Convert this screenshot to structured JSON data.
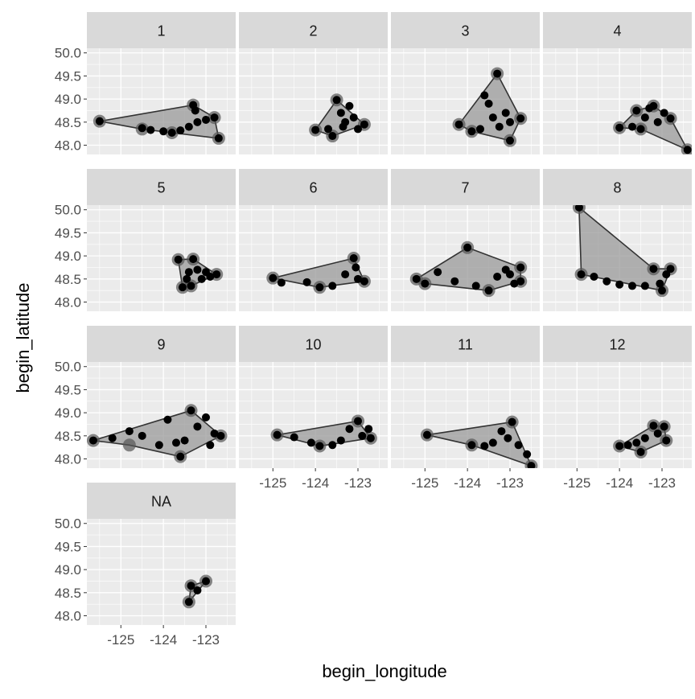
{
  "chart_data": {
    "type": "scatter",
    "subtype": "faceted scatter with convex hull polygons",
    "xlabel": "begin_longitude",
    "ylabel": "begin_latitude",
    "xlim": [
      -125.8,
      -122.3
    ],
    "ylim": [
      47.8,
      50.1
    ],
    "x_ticks": [
      -125,
      -124,
      -123
    ],
    "x_tick_labels": [
      "-125",
      "-124",
      "-123"
    ],
    "y_ticks": [
      48.0,
      48.5,
      49.0,
      49.5,
      50.0
    ],
    "y_tick_labels": [
      "48.0",
      "48.5",
      "49.0",
      "49.5",
      "50.0"
    ],
    "grid": true,
    "legend": "none",
    "colors": {
      "panel_bg": "#ebebeb",
      "strip_bg": "#d9d9d9",
      "grid_major": "#ffffff",
      "point": "#000000",
      "hull_fill": "#999999",
      "hull_stroke": "#333333"
    },
    "facets": [
      {
        "label": "1",
        "hull": [
          [
            -125.5,
            48.52
          ],
          [
            -123.3,
            48.87
          ],
          [
            -122.8,
            48.6
          ],
          [
            -122.7,
            48.15
          ],
          [
            -123.8,
            48.27
          ],
          [
            -124.5,
            48.35
          ]
        ],
        "points": [
          [
            -125.5,
            48.52
          ],
          [
            -124.5,
            48.37
          ],
          [
            -124.3,
            48.33
          ],
          [
            -124.0,
            48.3
          ],
          [
            -123.8,
            48.27
          ],
          [
            -123.6,
            48.32
          ],
          [
            -123.4,
            48.4
          ],
          [
            -123.3,
            48.87
          ],
          [
            -123.25,
            48.75
          ],
          [
            -123.2,
            48.5
          ],
          [
            -123.0,
            48.55
          ],
          [
            -122.8,
            48.6
          ],
          [
            -122.7,
            48.15
          ]
        ]
      },
      {
        "label": "2",
        "hull": [
          [
            -124.0,
            48.33
          ],
          [
            -123.5,
            48.98
          ],
          [
            -122.85,
            48.45
          ],
          [
            -123.6,
            48.2
          ]
        ],
        "points": [
          [
            -124.0,
            48.33
          ],
          [
            -123.7,
            48.35
          ],
          [
            -123.6,
            48.2
          ],
          [
            -123.5,
            48.98
          ],
          [
            -123.4,
            48.7
          ],
          [
            -123.3,
            48.5
          ],
          [
            -123.2,
            48.85
          ],
          [
            -123.1,
            48.6
          ],
          [
            -123.0,
            48.35
          ],
          [
            -122.85,
            48.45
          ],
          [
            -123.35,
            48.4
          ]
        ]
      },
      {
        "label": "3",
        "hull": [
          [
            -124.2,
            48.45
          ],
          [
            -123.3,
            49.55
          ],
          [
            -122.75,
            48.58
          ],
          [
            -123.0,
            48.1
          ],
          [
            -123.9,
            48.3
          ]
        ],
        "points": [
          [
            -124.2,
            48.45
          ],
          [
            -123.9,
            48.3
          ],
          [
            -123.6,
            49.08
          ],
          [
            -123.5,
            48.9
          ],
          [
            -123.4,
            48.6
          ],
          [
            -123.3,
            49.55
          ],
          [
            -123.25,
            48.4
          ],
          [
            -123.1,
            48.7
          ],
          [
            -123.0,
            48.1
          ],
          [
            -123.0,
            48.5
          ],
          [
            -122.75,
            48.58
          ],
          [
            -123.7,
            48.35
          ]
        ]
      },
      {
        "label": "4",
        "hull": [
          [
            -124.0,
            48.38
          ],
          [
            -123.6,
            48.75
          ],
          [
            -123.2,
            48.85
          ],
          [
            -122.8,
            48.58
          ],
          [
            -122.4,
            47.9
          ],
          [
            -123.5,
            48.35
          ]
        ],
        "points": [
          [
            -124.0,
            48.38
          ],
          [
            -123.7,
            48.4
          ],
          [
            -123.6,
            48.75
          ],
          [
            -123.5,
            48.35
          ],
          [
            -123.4,
            48.6
          ],
          [
            -123.3,
            48.8
          ],
          [
            -123.2,
            48.85
          ],
          [
            -123.1,
            48.5
          ],
          [
            -122.95,
            48.7
          ],
          [
            -122.8,
            48.58
          ],
          [
            -122.4,
            47.9
          ]
        ]
      },
      {
        "label": "5",
        "hull": [
          [
            -123.65,
            48.92
          ],
          [
            -123.3,
            48.93
          ],
          [
            -122.75,
            48.6
          ],
          [
            -123.35,
            48.35
          ],
          [
            -123.55,
            48.32
          ]
        ],
        "points": [
          [
            -123.65,
            48.92
          ],
          [
            -123.55,
            48.32
          ],
          [
            -123.45,
            48.5
          ],
          [
            -123.4,
            48.65
          ],
          [
            -123.3,
            48.93
          ],
          [
            -123.2,
            48.7
          ],
          [
            -123.1,
            48.5
          ],
          [
            -123.0,
            48.65
          ],
          [
            -122.9,
            48.55
          ],
          [
            -122.75,
            48.6
          ],
          [
            -123.35,
            48.35
          ]
        ]
      },
      {
        "label": "6",
        "hull": [
          [
            -125.0,
            48.52
          ],
          [
            -123.1,
            48.95
          ],
          [
            -122.85,
            48.45
          ],
          [
            -123.9,
            48.32
          ]
        ],
        "points": [
          [
            -125.0,
            48.52
          ],
          [
            -124.8,
            48.42
          ],
          [
            -124.2,
            48.43
          ],
          [
            -123.9,
            48.32
          ],
          [
            -123.6,
            48.35
          ],
          [
            -123.3,
            48.6
          ],
          [
            -123.1,
            48.95
          ],
          [
            -123.05,
            48.75
          ],
          [
            -123.0,
            48.5
          ],
          [
            -122.85,
            48.45
          ]
        ]
      },
      {
        "label": "7",
        "hull": [
          [
            -125.2,
            48.5
          ],
          [
            -124.0,
            49.18
          ],
          [
            -122.75,
            48.75
          ],
          [
            -122.75,
            48.45
          ],
          [
            -123.5,
            48.25
          ],
          [
            -125.0,
            48.4
          ]
        ],
        "points": [
          [
            -125.2,
            48.5
          ],
          [
            -125.0,
            48.4
          ],
          [
            -124.7,
            48.65
          ],
          [
            -124.3,
            48.45
          ],
          [
            -124.0,
            49.18
          ],
          [
            -123.8,
            48.35
          ],
          [
            -123.5,
            48.25
          ],
          [
            -123.3,
            48.55
          ],
          [
            -123.1,
            48.7
          ],
          [
            -123.0,
            48.6
          ],
          [
            -122.9,
            48.4
          ],
          [
            -122.75,
            48.75
          ],
          [
            -122.75,
            48.45
          ]
        ]
      },
      {
        "label": "8",
        "hull": [
          [
            -124.95,
            50.05
          ],
          [
            -124.9,
            48.6
          ],
          [
            -123.0,
            48.25
          ],
          [
            -122.8,
            48.72
          ],
          [
            -123.2,
            48.72
          ]
        ],
        "points": [
          [
            -124.95,
            50.05
          ],
          [
            -124.9,
            48.6
          ],
          [
            -124.6,
            48.55
          ],
          [
            -124.3,
            48.45
          ],
          [
            -124.0,
            48.38
          ],
          [
            -123.7,
            48.35
          ],
          [
            -123.4,
            48.35
          ],
          [
            -123.2,
            48.72
          ],
          [
            -123.05,
            48.4
          ],
          [
            -123.0,
            48.25
          ],
          [
            -122.9,
            48.6
          ],
          [
            -122.8,
            48.72
          ]
        ]
      },
      {
        "label": "9",
        "hull": [
          [
            -125.65,
            48.4
          ],
          [
            -123.35,
            49.05
          ],
          [
            -122.65,
            48.5
          ],
          [
            -123.6,
            48.05
          ],
          [
            -124.8,
            48.3
          ]
        ],
        "points": [
          [
            -125.65,
            48.4
          ],
          [
            -125.2,
            48.45
          ],
          [
            -124.8,
            48.6
          ],
          [
            -124.5,
            48.5
          ],
          [
            -124.1,
            48.3
          ],
          [
            -123.9,
            48.85
          ],
          [
            -123.6,
            48.05
          ],
          [
            -123.5,
            48.4
          ],
          [
            -123.35,
            49.05
          ],
          [
            -123.2,
            48.7
          ],
          [
            -123.0,
            48.9
          ],
          [
            -122.9,
            48.3
          ],
          [
            -122.8,
            48.55
          ],
          [
            -122.65,
            48.5
          ],
          [
            -123.7,
            48.35
          ]
        ]
      },
      {
        "label": "10",
        "hull": [
          [
            -124.9,
            48.52
          ],
          [
            -123.0,
            48.82
          ],
          [
            -122.7,
            48.45
          ],
          [
            -123.9,
            48.28
          ]
        ],
        "points": [
          [
            -124.9,
            48.52
          ],
          [
            -124.5,
            48.47
          ],
          [
            -124.1,
            48.35
          ],
          [
            -123.9,
            48.28
          ],
          [
            -123.6,
            48.3
          ],
          [
            -123.4,
            48.4
          ],
          [
            -123.2,
            48.65
          ],
          [
            -123.0,
            48.82
          ],
          [
            -122.9,
            48.5
          ],
          [
            -122.7,
            48.45
          ],
          [
            -122.75,
            48.65
          ]
        ]
      },
      {
        "label": "11",
        "hull": [
          [
            -124.95,
            48.52
          ],
          [
            -122.95,
            48.8
          ],
          [
            -122.5,
            47.85
          ],
          [
            -123.9,
            48.3
          ]
        ],
        "points": [
          [
            -124.95,
            48.52
          ],
          [
            -123.9,
            48.3
          ],
          [
            -123.6,
            48.28
          ],
          [
            -123.4,
            48.35
          ],
          [
            -123.2,
            48.6
          ],
          [
            -123.05,
            48.45
          ],
          [
            -122.95,
            48.8
          ],
          [
            -122.8,
            48.3
          ],
          [
            -122.6,
            48.1
          ],
          [
            -122.5,
            47.85
          ]
        ]
      },
      {
        "label": "12",
        "hull": [
          [
            -124.0,
            48.28
          ],
          [
            -123.2,
            48.72
          ],
          [
            -122.95,
            48.7
          ],
          [
            -122.9,
            48.4
          ],
          [
            -123.5,
            48.15
          ]
        ],
        "points": [
          [
            -124.0,
            48.28
          ],
          [
            -123.8,
            48.3
          ],
          [
            -123.6,
            48.35
          ],
          [
            -123.5,
            48.15
          ],
          [
            -123.4,
            48.45
          ],
          [
            -123.2,
            48.72
          ],
          [
            -123.1,
            48.55
          ],
          [
            -122.95,
            48.7
          ],
          [
            -122.9,
            48.4
          ]
        ]
      },
      {
        "label": "NA",
        "hull": [
          [
            -123.4,
            48.3
          ],
          [
            -123.0,
            48.75
          ],
          [
            -123.35,
            48.65
          ]
        ],
        "points": [
          [
            -123.4,
            48.3
          ],
          [
            -123.35,
            48.65
          ],
          [
            -123.2,
            48.55
          ],
          [
            -123.0,
            48.75
          ]
        ]
      }
    ]
  }
}
